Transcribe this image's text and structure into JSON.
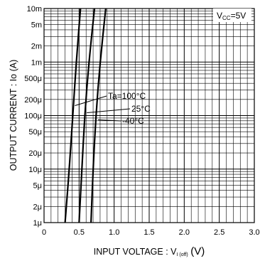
{
  "chart_data": {
    "type": "line",
    "title": "",
    "xlabel": "INPUT  VOLTAGE : V",
    "xlabel_sub": "I (off)",
    "xlabel_unit": "(V)",
    "ylabel": "OUTPUT  CURRENT : Io (A)",
    "xlim": [
      0,
      3.0
    ],
    "ylim": [
      1e-06,
      0.01
    ],
    "yscale": "log",
    "grid": true,
    "x_ticks": [
      {
        "value": 0,
        "label": "0"
      },
      {
        "value": 0.5,
        "label": "0.5"
      },
      {
        "value": 1.0,
        "label": "1.0"
      },
      {
        "value": 1.5,
        "label": "1.5"
      },
      {
        "value": 2.0,
        "label": "2.0"
      },
      {
        "value": 2.5,
        "label": "2.5"
      },
      {
        "value": 3.0,
        "label": "3.0"
      }
    ],
    "y_ticks": [
      {
        "value": 0.01,
        "label": "10m"
      },
      {
        "value": 0.005,
        "label": "5m"
      },
      {
        "value": 0.002,
        "label": "2m"
      },
      {
        "value": 0.001,
        "label": "1m"
      },
      {
        "value": 0.0005,
        "label": "500μ"
      },
      {
        "value": 0.0002,
        "label": "200μ"
      },
      {
        "value": 0.0001,
        "label": "100μ"
      },
      {
        "value": 5e-05,
        "label": "50μ"
      },
      {
        "value": 2e-05,
        "label": "20μ"
      },
      {
        "value": 1e-05,
        "label": "10μ"
      },
      {
        "value": 5e-06,
        "label": "5μ"
      },
      {
        "value": 2e-06,
        "label": "2μ"
      },
      {
        "value": 1e-06,
        "label": "1μ"
      }
    ],
    "condition_label": "VCC=5V",
    "series": [
      {
        "name": "Ta=100°C",
        "points": [
          [
            0.3,
            1e-06
          ],
          [
            0.36,
            1e-05
          ],
          [
            0.41,
            0.0001
          ],
          [
            0.46,
            0.001
          ],
          [
            0.52,
            0.01
          ]
        ]
      },
      {
        "name": "25°C",
        "points": [
          [
            0.5,
            1e-06
          ],
          [
            0.54,
            1e-05
          ],
          [
            0.58,
            0.0001
          ],
          [
            0.64,
            0.001
          ],
          [
            0.72,
            0.01
          ]
        ]
      },
      {
        "name": "-40°C",
        "points": [
          [
            0.67,
            1e-06
          ],
          [
            0.7,
            1e-05
          ],
          [
            0.74,
            0.0001
          ],
          [
            0.8,
            0.001
          ],
          [
            0.88,
            0.01
          ]
        ]
      }
    ]
  }
}
